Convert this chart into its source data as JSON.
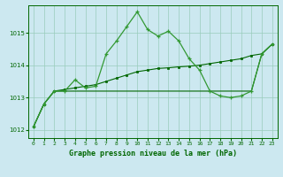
{
  "title": "Graphe pression niveau de la mer (hPa)",
  "background_color": "#cce8f0",
  "grid_color": "#99ccbb",
  "line_color_dark": "#006600",
  "line_color_medium": "#339933",
  "xlim": [
    -0.5,
    23.5
  ],
  "ylim": [
    1011.75,
    1015.85
  ],
  "yticks": [
    1012,
    1013,
    1014,
    1015
  ],
  "xticks": [
    0,
    1,
    2,
    3,
    4,
    5,
    6,
    7,
    8,
    9,
    10,
    11,
    12,
    13,
    14,
    15,
    16,
    17,
    18,
    19,
    20,
    21,
    22,
    23
  ],
  "series1_x": [
    0,
    1,
    2,
    3,
    4,
    5,
    6,
    7,
    8,
    9,
    10,
    11,
    12,
    13,
    14,
    15,
    16,
    17,
    18,
    19,
    20,
    21,
    22,
    23
  ],
  "series1_y": [
    1012.1,
    1012.8,
    1013.2,
    1013.2,
    1013.55,
    1013.3,
    1013.35,
    1014.35,
    1014.75,
    1015.2,
    1015.65,
    1015.1,
    1014.9,
    1015.05,
    1014.75,
    1014.2,
    1013.85,
    1013.2,
    1013.05,
    1013.0,
    1013.05,
    1013.2,
    1014.35,
    1014.65
  ],
  "series2_x": [
    0,
    1,
    2,
    3,
    4,
    5,
    6,
    7,
    8,
    9,
    10,
    11,
    12,
    13,
    14,
    15,
    16,
    17,
    18,
    19,
    20,
    21,
    22,
    23
  ],
  "series2_y": [
    1012.1,
    1012.8,
    1013.2,
    1013.2,
    1013.2,
    1013.2,
    1013.2,
    1013.2,
    1013.2,
    1013.2,
    1013.2,
    1013.2,
    1013.2,
    1013.2,
    1013.2,
    1013.2,
    1013.2,
    1013.2,
    1013.2,
    1013.2,
    1013.2,
    1013.2,
    1014.35,
    1014.65
  ],
  "series3_x": [
    0,
    1,
    2,
    3,
    4,
    5,
    6,
    7,
    8,
    9,
    10,
    11,
    12,
    13,
    14,
    15,
    16,
    17,
    18,
    19,
    20,
    21,
    22,
    23
  ],
  "series3_y": [
    1012.1,
    1012.8,
    1013.2,
    1013.25,
    1013.3,
    1013.35,
    1013.4,
    1013.5,
    1013.6,
    1013.7,
    1013.8,
    1013.85,
    1013.9,
    1013.92,
    1013.95,
    1013.97,
    1014.0,
    1014.05,
    1014.1,
    1014.15,
    1014.2,
    1014.3,
    1014.35,
    1014.65
  ],
  "title_fontsize": 6.0,
  "tick_fontsize": 4.5
}
